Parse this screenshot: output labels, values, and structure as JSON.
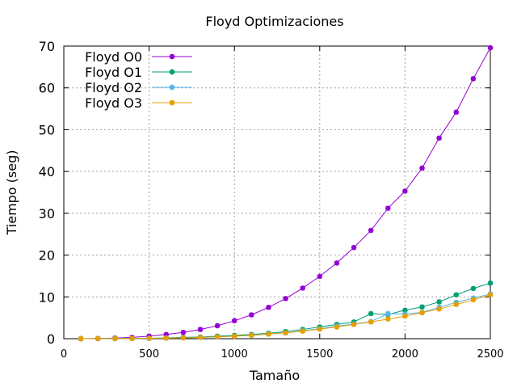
{
  "chart_data": {
    "type": "line",
    "title": "Floyd Optimizaciones",
    "xlabel": "Tamaño",
    "ylabel": "Tiempo (seg)",
    "xlim": [
      0,
      2500
    ],
    "ylim": [
      0,
      70
    ],
    "xticks": [
      0,
      500,
      1000,
      1500,
      2000,
      2500
    ],
    "yticks": [
      0,
      10,
      20,
      30,
      40,
      50,
      60,
      70
    ],
    "grid": true,
    "legend_position": "top-left",
    "x": [
      100,
      200,
      300,
      400,
      500,
      600,
      700,
      800,
      900,
      1000,
      1100,
      1200,
      1300,
      1400,
      1500,
      1600,
      1700,
      1800,
      1900,
      2000,
      2100,
      2200,
      2300,
      2400,
      2500
    ],
    "series": [
      {
        "name": "Floyd O0",
        "color": "#9400d3",
        "values": [
          0.0,
          0.05,
          0.15,
          0.3,
          0.6,
          1.0,
          1.5,
          2.2,
          3.1,
          4.3,
          5.7,
          7.5,
          9.6,
          12.1,
          14.9,
          18.1,
          21.8,
          25.9,
          31.2,
          35.3,
          40.8,
          48.0,
          54.2,
          62.2,
          69.6
        ]
      },
      {
        "name": "Floyd O1",
        "color": "#009e73",
        "values": [
          0.0,
          0.01,
          0.03,
          0.05,
          0.1,
          0.2,
          0.3,
          0.4,
          0.6,
          0.8,
          1.0,
          1.3,
          1.7,
          2.2,
          2.8,
          3.4,
          4.0,
          6.0,
          5.8,
          6.8,
          7.6,
          8.8,
          10.5,
          12.0,
          13.3
        ]
      },
      {
        "name": "Floyd O2",
        "color": "#56b4e9",
        "values": [
          0.0,
          0.01,
          0.02,
          0.04,
          0.08,
          0.15,
          0.2,
          0.3,
          0.45,
          0.6,
          0.8,
          1.1,
          1.4,
          1.9,
          2.4,
          3.0,
          3.5,
          4.1,
          6.0,
          5.9,
          6.3,
          7.5,
          8.7,
          9.7,
          10.7
        ]
      },
      {
        "name": "Floyd O3",
        "color": "#e69f00",
        "values": [
          0.0,
          0.01,
          0.02,
          0.04,
          0.08,
          0.15,
          0.2,
          0.3,
          0.45,
          0.6,
          0.8,
          1.1,
          1.4,
          1.8,
          2.3,
          2.8,
          3.4,
          4.0,
          4.7,
          5.4,
          6.2,
          7.1,
          8.2,
          9.3,
          10.5
        ]
      }
    ]
  }
}
